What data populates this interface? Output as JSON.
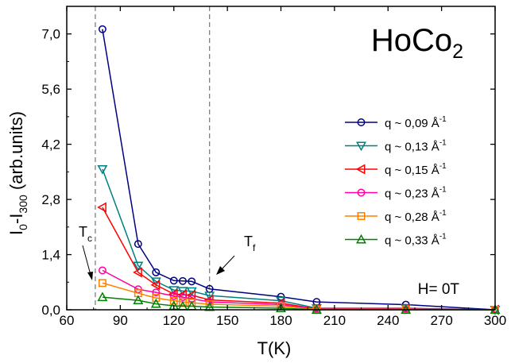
{
  "chart_data": {
    "type": "line",
    "title": "HoCo",
    "title_subscript": "2",
    "xlabel": "T(K)",
    "ylabel": {
      "base1": "I",
      "sub1": "0",
      "mid": "-I",
      "sub2": "300",
      "rest": " (arb.units)"
    },
    "xlim": [
      60,
      300
    ],
    "ylim": [
      0,
      7.7
    ],
    "xticks": [
      60,
      90,
      120,
      150,
      180,
      210,
      240,
      270,
      300
    ],
    "xtick_labels": [
      "60",
      "90",
      "120",
      "150",
      "180",
      "210",
      "240",
      "270",
      "300"
    ],
    "yticks": [
      0,
      1.4,
      2.8,
      4.2,
      5.6,
      7.0
    ],
    "ytick_labels": [
      "0,0",
      "1,4",
      "2,8",
      "4,2",
      "5,6",
      "7,0"
    ],
    "grid": false,
    "legend_position": "right",
    "series": [
      {
        "name": "q ~ 0,09 Å",
        "sup": "-1",
        "color": "#000080",
        "marker": "circle",
        "x": [
          80,
          100,
          110,
          120,
          125,
          130,
          140,
          180,
          200,
          250,
          300
        ],
        "y": [
          7.12,
          1.67,
          0.95,
          0.74,
          0.73,
          0.72,
          0.53,
          0.33,
          0.2,
          0.13,
          0.0
        ]
      },
      {
        "name": "q ~ 0,13 Å",
        "sup": "-1",
        "color": "#008080",
        "marker": "triangle-down",
        "x": [
          80,
          100,
          110,
          120,
          125,
          130,
          140,
          180,
          200,
          250,
          300
        ],
        "y": [
          3.57,
          1.12,
          0.72,
          0.5,
          0.48,
          0.47,
          0.36,
          0.23,
          0.04,
          0.04,
          0.0
        ]
      },
      {
        "name": "q ~ 0,15 Å",
        "sup": "-1",
        "color": "#ff0000",
        "marker": "triangle-left",
        "x": [
          80,
          100,
          110,
          120,
          125,
          130,
          140,
          180,
          200,
          250,
          300
        ],
        "y": [
          2.6,
          0.95,
          0.63,
          0.4,
          0.38,
          0.37,
          0.25,
          0.17,
          0.02,
          0.02,
          0.0
        ]
      },
      {
        "name": "q ~ 0,23 Å",
        "sup": "-1",
        "color": "#ff00a0",
        "marker": "circle",
        "x": [
          80,
          100,
          110,
          120,
          125,
          130,
          140,
          180,
          200,
          250,
          300
        ],
        "y": [
          1.0,
          0.52,
          0.44,
          0.35,
          0.32,
          0.28,
          0.2,
          0.13,
          0.02,
          0.02,
          0.0
        ]
      },
      {
        "name": "q ~ 0,28 Å",
        "sup": "-1",
        "color": "#ff8000",
        "marker": "square",
        "x": [
          80,
          100,
          110,
          120,
          125,
          130,
          140,
          180,
          200,
          250,
          300
        ],
        "y": [
          0.68,
          0.42,
          0.3,
          0.23,
          0.2,
          0.18,
          0.14,
          0.09,
          0.01,
          0.01,
          0.0
        ]
      },
      {
        "name": "q ~ 0,33 Å",
        "sup": "-1",
        "color": "#008000",
        "marker": "triangle-up",
        "x": [
          80,
          100,
          110,
          120,
          125,
          130,
          140,
          180,
          200,
          250,
          300
        ],
        "y": [
          0.32,
          0.24,
          0.15,
          0.1,
          0.09,
          0.09,
          0.07,
          0.04,
          0.0,
          0.0,
          0.0
        ]
      }
    ],
    "vlines": [
      {
        "x": 76,
        "label": "T",
        "sub": "c"
      },
      {
        "x": 140,
        "label": "T",
        "sub": "f"
      }
    ],
    "annotation": "H= 0T"
  }
}
